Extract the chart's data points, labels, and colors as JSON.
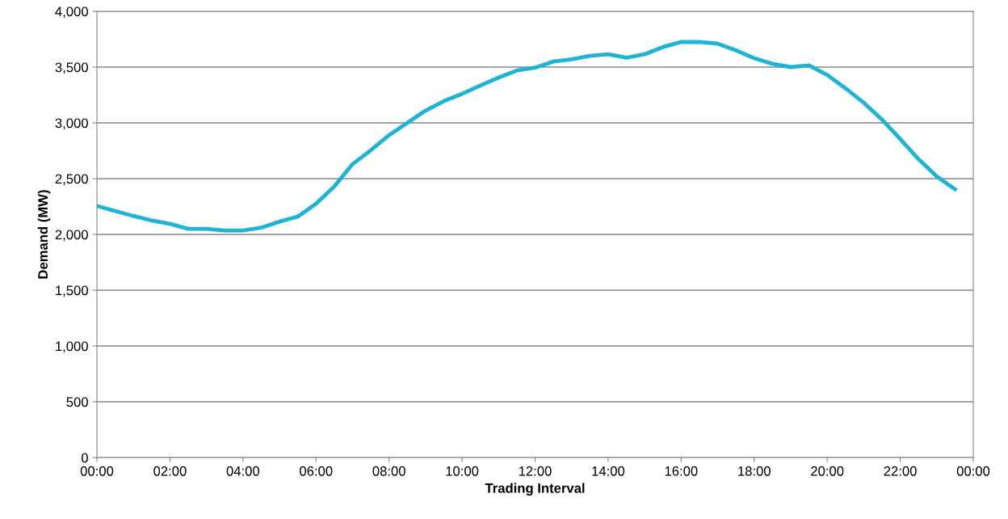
{
  "chart_data": {
    "type": "line",
    "xlabel": "Trading Interval",
    "ylabel": "Demand (MW)",
    "x": [
      0,
      0.5,
      1,
      1.5,
      2,
      2.5,
      3,
      3.5,
      4,
      4.5,
      5,
      5.5,
      6,
      6.5,
      7,
      7.5,
      8,
      8.5,
      9,
      9.5,
      10,
      10.5,
      11,
      11.5,
      12,
      12.5,
      13,
      13.5,
      14,
      14.5,
      15,
      15.5,
      16,
      16.5,
      17,
      17.5,
      18,
      18.5,
      19,
      19.5,
      20,
      20.5,
      21,
      21.5,
      22,
      22.5,
      23,
      23.5
    ],
    "series": [
      {
        "color": "#1fb4d4",
        "values": [
          2255,
          2210,
          2165,
          2125,
          2095,
          2050,
          2050,
          2035,
          2035,
          2060,
          2115,
          2160,
          2275,
          2430,
          2630,
          2755,
          2890,
          3000,
          3110,
          3195,
          3260,
          3335,
          3405,
          3470,
          3495,
          3550,
          3570,
          3600,
          3615,
          3585,
          3615,
          3680,
          3725,
          3725,
          3710,
          3650,
          3580,
          3530,
          3500,
          3515,
          3430,
          3310,
          3180,
          3030,
          2855,
          2675,
          2520,
          2405
        ]
      }
    ],
    "xlim": [
      0,
      24
    ],
    "xticks": [
      {
        "value": 0,
        "label": "00:00"
      },
      {
        "value": 2,
        "label": "02:00"
      },
      {
        "value": 4,
        "label": "04:00"
      },
      {
        "value": 6,
        "label": "06:00"
      },
      {
        "value": 8,
        "label": "08:00"
      },
      {
        "value": 10,
        "label": "10:00"
      },
      {
        "value": 12,
        "label": "12:00"
      },
      {
        "value": 14,
        "label": "14:00"
      },
      {
        "value": 16,
        "label": "16:00"
      },
      {
        "value": 18,
        "label": "18:00"
      },
      {
        "value": 20,
        "label": "20:00"
      },
      {
        "value": 22,
        "label": "22:00"
      },
      {
        "value": 24,
        "label": "00:00"
      }
    ],
    "ylim": [
      0,
      4000
    ],
    "yticks": [
      0,
      {
        "value": 500,
        "label": "500"
      },
      {
        "value": 1000,
        "label": "1,000"
      },
      {
        "value": 1500,
        "label": "1,500"
      },
      {
        "value": 2000,
        "label": "2,000"
      },
      {
        "value": 2500,
        "label": "2,500"
      },
      {
        "value": 3000,
        "label": "3,000"
      },
      {
        "value": 3500,
        "label": "3,500"
      },
      {
        "value": 4000,
        "label": "4,000"
      }
    ],
    "grid": "y",
    "marker": "none",
    "line_style": "solid"
  }
}
